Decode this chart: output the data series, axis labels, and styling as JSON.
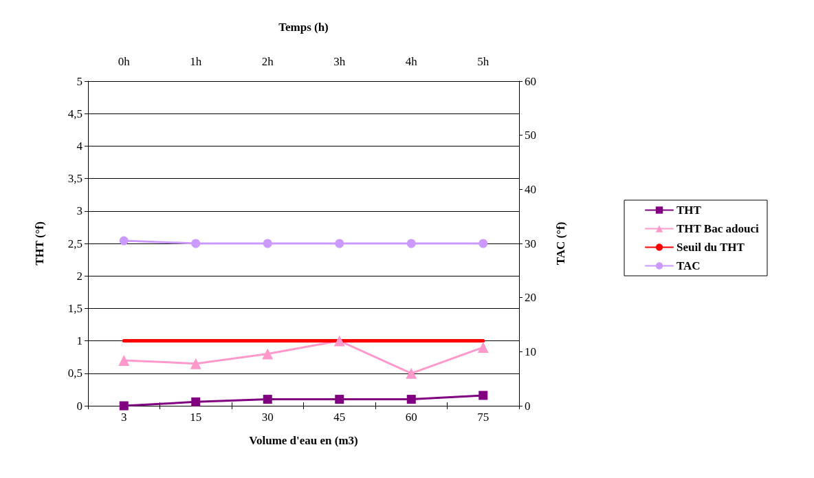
{
  "chart_data": {
    "type": "line",
    "xlabel": "Volume d'eau en (m3)",
    "ylabel": "THT (°f)",
    "y2label": "TAC (°f)",
    "x2label": "Temps (h)",
    "categories": [
      "3",
      "15",
      "30",
      "45",
      "60",
      "75"
    ],
    "x2lim": [
      -0.5,
      5.5
    ],
    "x2ticks": [
      {
        "value": 0,
        "label": "0h"
      },
      {
        "value": 1,
        "label": "1h"
      },
      {
        "value": 2,
        "label": "2h"
      },
      {
        "value": 3,
        "label": "3h"
      },
      {
        "value": 4,
        "label": "4h"
      },
      {
        "value": 5,
        "label": "5h"
      }
    ],
    "ylim": [
      0,
      5
    ],
    "yticks": [
      0,
      {
        "value": 0.5,
        "label": "0,5"
      },
      1,
      {
        "value": 1.5,
        "label": "1,5"
      },
      2,
      {
        "value": 2.5,
        "label": "2,5"
      },
      3,
      {
        "value": 3.5,
        "label": "3,5"
      },
      4,
      {
        "value": 4.5,
        "label": "4,5"
      },
      5
    ],
    "y2lim": [
      0,
      60
    ],
    "y2ticks": [
      0,
      10,
      20,
      30,
      40,
      50,
      60
    ],
    "series": [
      {
        "name": "THT",
        "color": "#800080",
        "marker": "square",
        "values": [
          0,
          0.06,
          0.1,
          0.1,
          0.1,
          0.16
        ]
      },
      {
        "name": "THT Bac adouci",
        "color": "#ff99cc",
        "marker": "triangle",
        "values": [
          0.7,
          0.65,
          0.8,
          1.0,
          0.5,
          0.9
        ]
      },
      {
        "name": "Seuil du THT",
        "color": "#ff0000",
        "marker": "none",
        "values": [
          1,
          1,
          1,
          1,
          1,
          1
        ]
      },
      {
        "name": "TAC",
        "color": "#cc99ff",
        "marker": "circle",
        "axis": "y2",
        "values": [
          30.5,
          30,
          30,
          30,
          30,
          30
        ]
      }
    ],
    "grid": "y",
    "legend": "right",
    "line_style": "solid"
  }
}
